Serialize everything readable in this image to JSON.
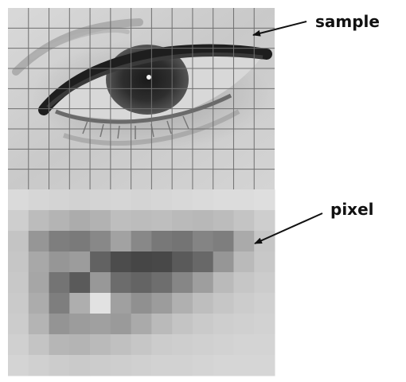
{
  "labels": {
    "sample": "sample",
    "pixel": "pixel"
  },
  "colors": {
    "grid_line": "#6f6f6f",
    "arrow": "#111111",
    "label": "#111111"
  },
  "image": {
    "grid_columns": 13,
    "grid_rows": 9,
    "pixel_columns": 13,
    "pixel_rows": 9,
    "pixel_gray_levels": [
      [
        218,
        214,
        212,
        210,
        212,
        214,
        212,
        214,
        216,
        218,
        220,
        220,
        222
      ],
      [
        206,
        188,
        180,
        172,
        178,
        190,
        188,
        190,
        186,
        184,
        188,
        196,
        206
      ],
      [
        196,
        150,
        126,
        122,
        136,
        162,
        136,
        120,
        116,
        132,
        126,
        170,
        198
      ],
      [
        198,
        168,
        150,
        156,
        98,
        76,
        70,
        72,
        90,
        104,
        150,
        186,
        200
      ],
      [
        200,
        166,
        116,
        90,
        152,
        108,
        100,
        110,
        134,
        158,
        186,
        198,
        204
      ],
      [
        202,
        172,
        126,
        174,
        226,
        160,
        144,
        156,
        176,
        190,
        198,
        204,
        208
      ],
      [
        204,
        180,
        148,
        156,
        160,
        154,
        170,
        186,
        196,
        202,
        206,
        208,
        210
      ],
      [
        208,
        196,
        182,
        180,
        186,
        192,
        198,
        204,
        206,
        208,
        210,
        212,
        212
      ],
      [
        212,
        208,
        204,
        202,
        204,
        206,
        208,
        210,
        210,
        212,
        214,
        214,
        214
      ]
    ]
  }
}
